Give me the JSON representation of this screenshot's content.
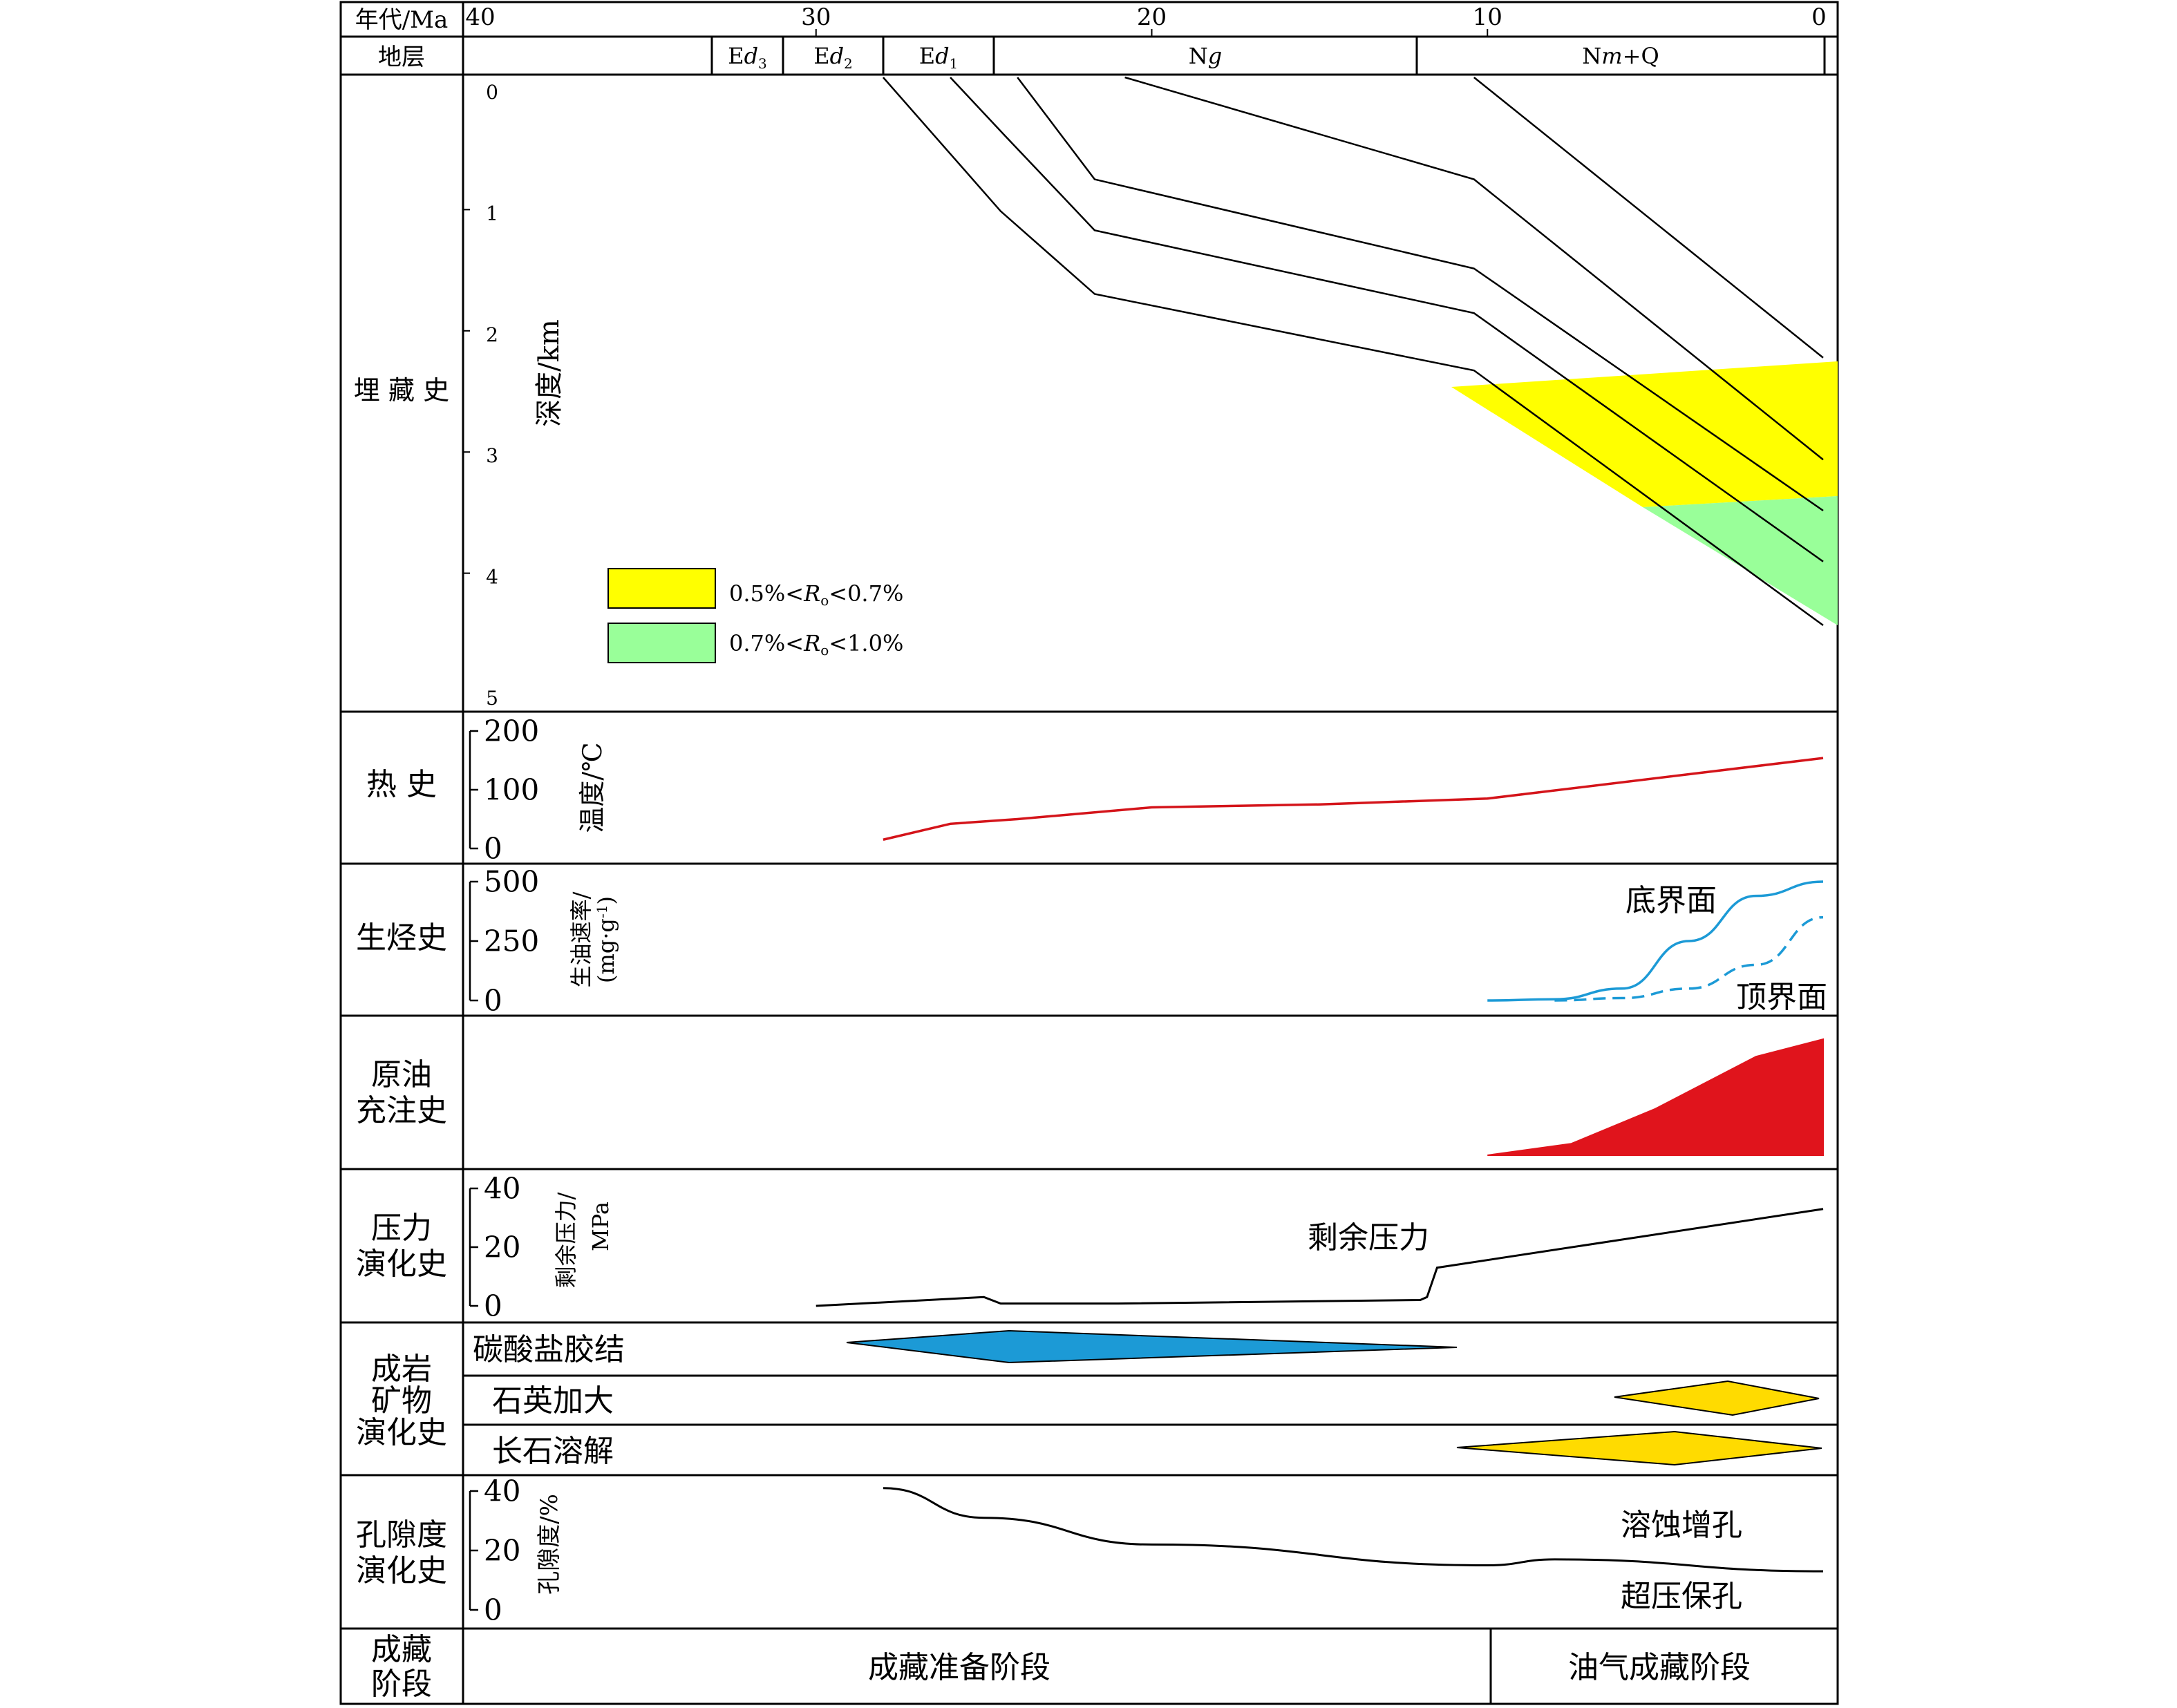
{
  "header": {
    "age_label": "年代/Ma",
    "strata_label": "地层",
    "age_ticks": [
      "40",
      "30",
      "20",
      "10",
      "0"
    ]
  },
  "strata": [
    {
      "name": "Ed3",
      "base": "Ed",
      "sub": "3"
    },
    {
      "name": "Ed2",
      "base": "Ed",
      "sub": "2"
    },
    {
      "name": "Ed1",
      "base": "Ed",
      "sub": "1"
    },
    {
      "name": "Ng",
      "base": "Ng",
      "sub": ""
    },
    {
      "name": "Nm+Q",
      "base": "Nm+Q",
      "sub": ""
    }
  ],
  "rows": {
    "burial": "埋 藏 史",
    "thermal": "热 史",
    "hydrocarbon": "生烃史",
    "charging": [
      "原油",
      "充注史"
    ],
    "pressure": [
      "压力",
      "演化史"
    ],
    "diagenesis": [
      "成岩",
      "矿物",
      "演化史"
    ],
    "porosity": [
      "孔隙度",
      "演化史"
    ],
    "stage": [
      "成藏",
      "阶段"
    ]
  },
  "burial": {
    "ylabel": "深度/km",
    "yticks": [
      "0",
      "1",
      "2",
      "3",
      "4",
      "5"
    ],
    "legend": [
      {
        "label": "0.5%<Ro<0.7%",
        "color": "#ffff00"
      },
      {
        "label": "0.7%<Ro<1.0%",
        "color": "#99ff99"
      }
    ]
  },
  "thermal": {
    "ylabel": "温度/℃",
    "yticks": [
      "200",
      "100",
      "0"
    ]
  },
  "hydrocarbon": {
    "ylabel": "生油速率/",
    "ylabel2": "(mg·g-1)",
    "yticks": [
      "500",
      "250",
      "0"
    ],
    "label_bottom": "底界面",
    "label_top": "顶界面"
  },
  "pressure": {
    "ylabel": "剩余压力/",
    "ylabel2": "MPa",
    "yticks": [
      "40",
      "20",
      "0"
    ],
    "label": "剩余压力"
  },
  "diagenesis": {
    "items": [
      "碳酸盐胶结",
      "石英加大",
      "长石溶解"
    ]
  },
  "porosity": {
    "ylabel": "孔隙度/%",
    "yticks": [
      "40",
      "20",
      "0"
    ],
    "label1": "溶蚀增孔",
    "label2": "超压保孔"
  },
  "stages": {
    "prep": "成藏准备阶段",
    "form": "油气成藏阶段"
  },
  "chart_data": [
    {
      "type": "line",
      "name": "burial history",
      "ylabel": "深度/km",
      "xlim": [
        40,
        0
      ],
      "ylim": [
        0,
        5
      ],
      "series": [
        {
          "x": [
            28,
            26,
            24.5,
            21.7,
            10.4,
            0
          ],
          "y": [
            0,
            0.6,
            1.05,
            1.7,
            2.3,
            4.3
          ]
        },
        {
          "x": [
            26,
            24.4,
            21.7,
            10.4,
            0
          ],
          "y": [
            0,
            0.45,
            1.2,
            1.85,
            3.8
          ]
        },
        {
          "x": [
            24,
            21.7,
            10.4,
            0
          ],
          "y": [
            0,
            0.8,
            1.5,
            3.4
          ]
        },
        {
          "x": [
            20.8,
            10.4,
            0
          ],
          "y": [
            0,
            0.8,
            3.0
          ]
        },
        {
          "x": [
            10.4,
            0
          ],
          "y": [
            0,
            2.2
          ]
        }
      ]
    },
    {
      "type": "line",
      "name": "thermal history",
      "ylabel": "温度/℃",
      "xlim": [
        40,
        0
      ],
      "ylim": [
        0,
        200
      ],
      "series": [
        {
          "x": [
            28,
            26,
            24,
            20,
            15,
            10,
            0
          ],
          "y": [
            15,
            42,
            50,
            70,
            75,
            85,
            154
          ]
        }
      ]
    },
    {
      "type": "line",
      "name": "hydrocarbon generation",
      "ylabel": "生油速率/(mg·g-1)",
      "xlim": [
        40,
        0
      ],
      "ylim": [
        0,
        500
      ],
      "series": [
        {
          "name": "底界面",
          "x": [
            10,
            8,
            6,
            4,
            2,
            0
          ],
          "y": [
            0,
            5,
            50,
            250,
            440,
            500
          ]
        },
        {
          "name": "顶界面",
          "x": [
            8,
            6,
            4,
            2,
            0
          ],
          "y": [
            0,
            10,
            50,
            150,
            350
          ]
        }
      ]
    },
    {
      "type": "area",
      "name": "oil charging",
      "xlim": [
        40,
        0
      ],
      "series": [
        {
          "x": [
            10,
            7.5,
            5,
            2,
            0
          ],
          "y": [
            0,
            0.1,
            0.4,
            0.85,
            1.0
          ]
        }
      ]
    },
    {
      "type": "line",
      "name": "pressure evolution",
      "ylabel": "剩余压力/MPa",
      "xlim": [
        40,
        0
      ],
      "ylim": [
        0,
        40
      ],
      "series": [
        {
          "x": [
            30,
            25,
            24.5,
            21,
            12,
            11.8,
            11.5,
            0
          ],
          "y": [
            0,
            3,
            0.8,
            0.8,
            2,
            3,
            13,
            33
          ]
        }
      ]
    },
    {
      "type": "line",
      "name": "porosity evolution",
      "ylabel": "孔隙度/%",
      "xlim": [
        40,
        0
      ],
      "ylim": [
        0,
        40
      ],
      "series": [
        {
          "x": [
            28,
            25,
            20,
            10,
            8,
            0
          ],
          "y": [
            41,
            31,
            22,
            15,
            17,
            13
          ]
        }
      ]
    }
  ]
}
